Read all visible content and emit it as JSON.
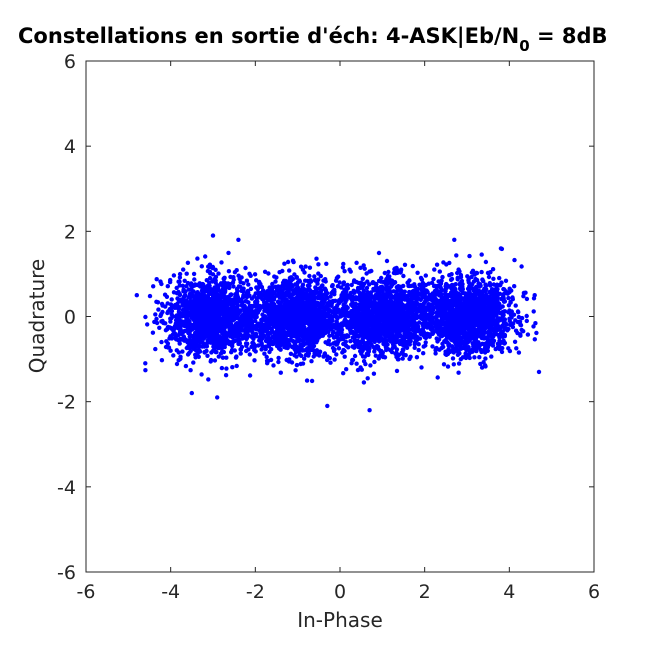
{
  "chart_data": {
    "type": "scatter",
    "title": {
      "prefix": "Constellations en sortie d'éch: 4-ASK|Eb/N",
      "subscript": "0",
      "suffix": " = 8dB"
    },
    "xlabel": "In-Phase",
    "ylabel": "Quadrature",
    "xlim": [
      -6,
      6
    ],
    "ylim": [
      -6,
      6
    ],
    "xticks": [
      -6,
      -4,
      -2,
      0,
      2,
      4,
      6
    ],
    "yticks": [
      -6,
      -4,
      -2,
      0,
      2,
      4,
      6
    ],
    "xtick_labels": [
      "-6",
      "-4",
      "-2",
      "0",
      "2",
      "4",
      "6"
    ],
    "ytick_labels": [
      "-6",
      "-4",
      "-2",
      "0",
      "2",
      "4",
      "6"
    ],
    "grid": false,
    "marker_color": "#0000ff",
    "axes_color": "#262626",
    "symbol_levels_in_phase": [
      -3,
      -1,
      1,
      3
    ],
    "cluster_spread": {
      "in_phase_sd": 0.55,
      "quadrature_sd": 0.45
    },
    "points_per_level": 1500,
    "outliers": [
      {
        "x": -3.0,
        "y": 1.9
      },
      {
        "x": -2.4,
        "y": 1.8
      },
      {
        "x": 2.7,
        "y": 1.8
      },
      {
        "x": 3.8,
        "y": 1.6
      },
      {
        "x": -4.8,
        "y": 0.5
      },
      {
        "x": -4.6,
        "y": -1.1
      },
      {
        "x": 4.7,
        "y": -1.3
      },
      {
        "x": -3.5,
        "y": -1.8
      },
      {
        "x": -2.9,
        "y": -1.9
      },
      {
        "x": -0.3,
        "y": -2.1
      },
      {
        "x": 0.7,
        "y": -2.2
      },
      {
        "x": 4.6,
        "y": 0.5
      }
    ]
  }
}
